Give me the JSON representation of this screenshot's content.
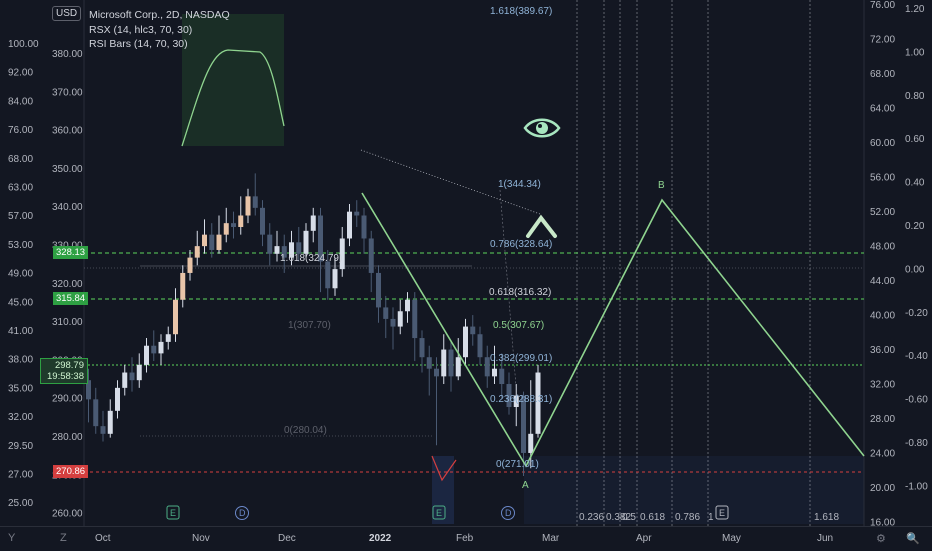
{
  "header": {
    "currency": "USD",
    "title": "Microsoft Corp., 2D, NASDAQ",
    "indicator1": "RSX (14, hlc3, 70, 30)",
    "indicator2": "RSI Bars (14, 70, 30)"
  },
  "left_axis": [
    "100.00",
    "92.00",
    "84.00",
    "76.00",
    "68.00",
    "63.00",
    "57.00",
    "53.00",
    "49.00",
    "45.00",
    "41.00",
    "38.00",
    "35.00",
    "32.00",
    "29.50",
    "27.00",
    "25.00"
  ],
  "inner_axis": [
    "380.00",
    "370.00",
    "360.00",
    "350.00",
    "340.00",
    "330.00",
    "320.00",
    "310.00",
    "300.00",
    "290.00",
    "280.00",
    "270.00",
    "260.00"
  ],
  "right_axis_inner": [
    "76.00",
    "72.00",
    "68.00",
    "64.00",
    "60.00",
    "56.00",
    "52.00",
    "48.00",
    "44.00",
    "40.00",
    "36.00",
    "32.00",
    "28.00",
    "24.00",
    "20.00",
    "16.00"
  ],
  "right_axis_outer": [
    "1.20",
    "1.00",
    "0.80",
    "0.60",
    "0.40",
    "0.20",
    "0.00",
    "-0.20",
    "-0.40",
    "-0.60",
    "-0.80",
    "-1.00"
  ],
  "price_tags": {
    "level1": "328.13",
    "level2": "315.84",
    "current": "298.79",
    "countdown": "19:58:38",
    "low": "270.86"
  },
  "x_axis": [
    "Oct",
    "Nov",
    "Dec",
    "2022",
    "Feb",
    "Mar",
    "Apr",
    "May",
    "Jun"
  ],
  "fib_labels": [
    "1.618(389.67)",
    "1(344.34)",
    "0.786(328.64)",
    "0.618(316.32)",
    "0.5(307.67)",
    "0.382(299.01)",
    "0.236(288.31)",
    "0(271.01)"
  ],
  "fib_left_labels": [
    "1.618(324.79)",
    "1(307.70)",
    "0(280.04)"
  ],
  "fib_time_labels": [
    "0.236",
    "0.382",
    "0.5",
    "0.618",
    "0.786",
    "1",
    "1.618"
  ],
  "pattern_labels": {
    "a": "A",
    "b": "B"
  },
  "event_markers": [
    "E",
    "D",
    "E",
    "D",
    "E"
  ],
  "bottom_icons": {
    "left1": "Y",
    "left2": "Z",
    "right1": "⚙",
    "right2": "🔍"
  },
  "colors": {
    "up": "#e8c4a8",
    "down": "#4a5a73",
    "bull_candle": "#d7dde8",
    "green": "#8fd48f",
    "dash_green": "#5cd65c",
    "red": "#d43f3f",
    "bg": "#131722"
  }
}
